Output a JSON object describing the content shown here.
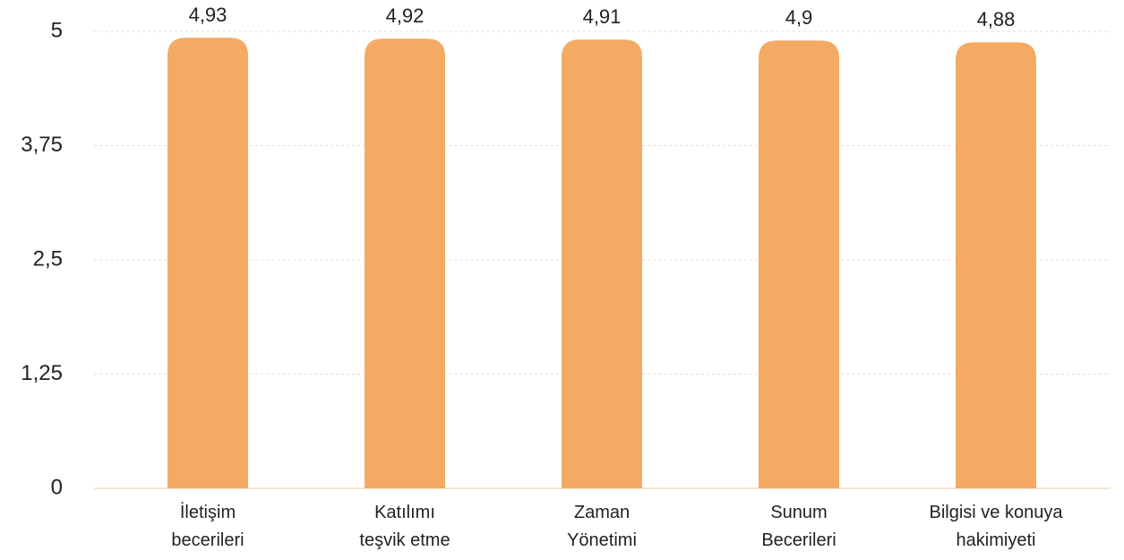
{
  "chart_data": {
    "type": "bar",
    "categories": [
      "İletişim\nbecerileri",
      "Katılımı\nteşvik etme",
      "Zaman\nYönetimi",
      "Sunum\nBecerileri",
      "Bilgisi ve konuya\nhakimiyeti"
    ],
    "values": [
      4.93,
      4.92,
      4.91,
      4.9,
      4.88
    ],
    "value_labels": [
      "4,93",
      "4,92",
      "4,91",
      "4,9",
      "4,88"
    ],
    "color": "#f5aa63",
    "ylim": [
      0,
      5
    ],
    "yticks": [
      0,
      {
        "value": 1.25,
        "label": "1,25"
      },
      {
        "value": 2.5,
        "label": "2,5"
      },
      {
        "value": 3.75,
        "label": "3,75"
      },
      5
    ],
    "grid": true
  }
}
